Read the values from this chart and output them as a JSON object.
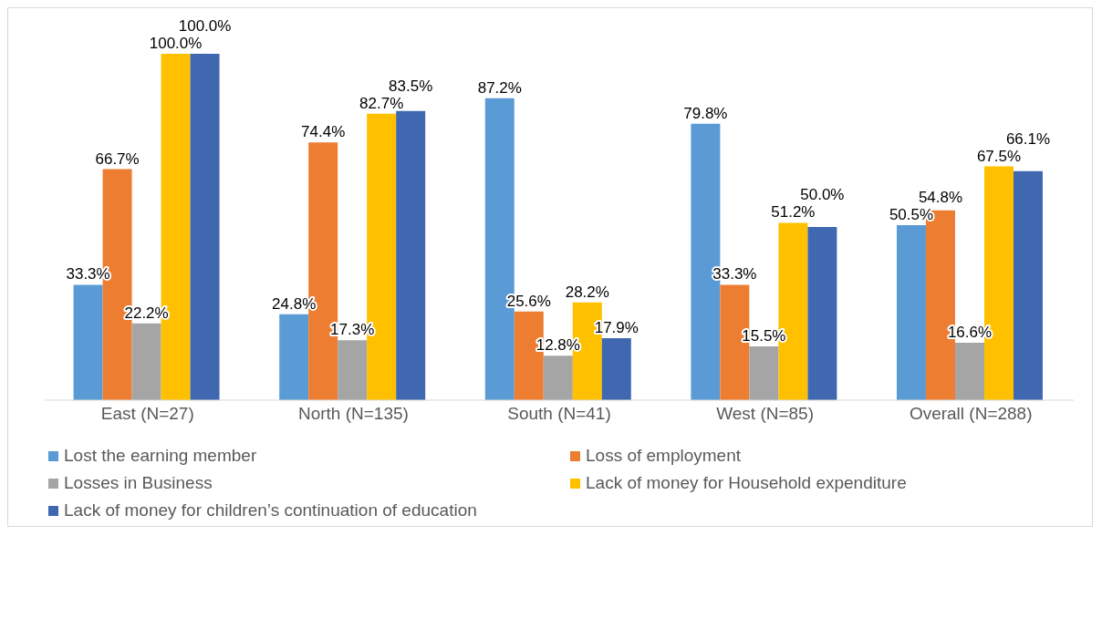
{
  "chart_data": {
    "type": "bar",
    "categories": [
      "East (N=27)",
      "North (N=135)",
      "South (N=41)",
      "West (N=85)",
      "Overall (N=288)"
    ],
    "series": [
      {
        "name": "Lost the earning member",
        "color": "#5b9bd5",
        "values": [
          33.3,
          24.8,
          87.2,
          79.8,
          50.5
        ],
        "value_labels": [
          "33.3%",
          "24.8%",
          "87.2%",
          "79.8%",
          "50.5%"
        ]
      },
      {
        "name": "Loss of employment",
        "color": "#ed7d31",
        "values": [
          66.7,
          74.4,
          25.6,
          33.3,
          54.8
        ],
        "value_labels": [
          "66.7%",
          "74.4%",
          "25.6%",
          "33.3%",
          "54.8%"
        ]
      },
      {
        "name": "Losses in Business",
        "color": "#a5a5a5",
        "values": [
          22.2,
          17.3,
          12.8,
          15.5,
          16.6
        ],
        "value_labels": [
          "22.2%",
          "17.3%",
          "12.8%",
          "15.5%",
          "16.6%"
        ]
      },
      {
        "name": "Lack of money for Household expenditure",
        "color": "#ffc000",
        "values": [
          100.0,
          82.7,
          28.2,
          51.2,
          67.5
        ],
        "value_labels": [
          "100.0%",
          "82.7%",
          "28.2%",
          "51.2%",
          "67.5%"
        ]
      },
      {
        "name": "Lack of money for children’s continuation of education",
        "color": "#4068b0",
        "values": [
          100.0,
          83.5,
          17.9,
          50.0,
          66.1
        ],
        "value_labels": [
          "100.0%",
          "83.5%",
          "17.9%",
          "50.0%",
          "66.1%"
        ]
      }
    ],
    "legend": "bottom",
    "grid": false
  }
}
